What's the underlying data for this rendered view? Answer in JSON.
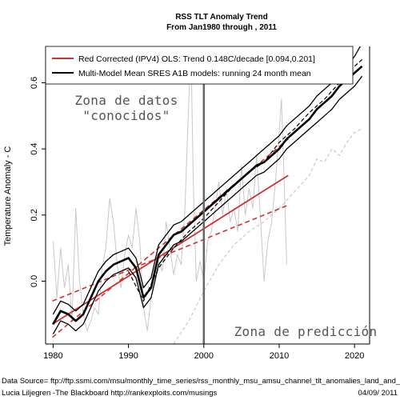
{
  "chart_data": {
    "type": "line",
    "title": "RSS TLT Anomaly Trend",
    "subtitle": "From Jan1980 through , 2011",
    "xlabel": "",
    "ylabel": "Temperature Anomaly - C",
    "xlim": [
      1979,
      2022
    ],
    "ylim": [
      -0.19,
      0.71
    ],
    "x_ticks": [
      1980,
      1990,
      2000,
      2010,
      2020
    ],
    "y_ticks": [
      0.0,
      0.2,
      0.4,
      0.6
    ],
    "grid": false,
    "legend_position": "top",
    "legend": [
      {
        "label": "Red Corrected (IPV4) OLS: Trend 0.148C/decade [0.094,0.201]",
        "color": "#d03030"
      },
      {
        "label": "Multi-Model Mean SRES A1B models: running 24 month mean",
        "color": "#000000"
      }
    ],
    "annotations": {
      "zone_known_line1": "Zona de datos",
      "zone_known_line2": "\"conocidos\"",
      "zone_prediction": "Zona de predicción"
    },
    "vertical_marker_x": 2000,
    "series": [
      {
        "name": "Red Corrected (IPV4) OLS: Trend 0.148C/decade [0.094,0.201]",
        "style": "red-solid",
        "x": [
          1979.9,
          2011.2
        ],
        "y": [
          -0.13,
          0.32
        ]
      },
      {
        "name": "",
        "style": "red-dashed",
        "x": [
          1979.9,
          2011.2
        ],
        "y": [
          -0.06,
          0.23
        ]
      },
      {
        "name": "",
        "style": "red-dashed",
        "x": [
          1979.9,
          2011.2
        ],
        "y": [
          -0.17,
          0.43
        ]
      },
      {
        "name": "Multi-Model Mean SRES A1B models: running 24 month mean",
        "style": "black-thick",
        "x": [
          1980,
          1981,
          1982,
          1983,
          1984,
          1985,
          1986,
          1987,
          1988,
          1989,
          1990,
          1991,
          1992,
          1993,
          1994,
          1995,
          1996,
          1997,
          1998,
          1999,
          2000,
          2001,
          2002,
          2003,
          2004,
          2005,
          2006,
          2007,
          2008,
          2009,
          2010,
          2011,
          2012,
          2013,
          2014,
          2015,
          2016,
          2017,
          2018,
          2019,
          2020,
          2021
        ],
        "y": [
          -0.13,
          -0.09,
          -0.1,
          -0.12,
          -0.1,
          -0.05,
          0.0,
          0.03,
          0.05,
          0.06,
          0.07,
          0.04,
          -0.05,
          -0.02,
          0.08,
          0.11,
          0.14,
          0.15,
          0.17,
          0.19,
          0.21,
          0.23,
          0.25,
          0.27,
          0.29,
          0.31,
          0.33,
          0.35,
          0.36,
          0.38,
          0.4,
          0.43,
          0.45,
          0.47,
          0.49,
          0.52,
          0.54,
          0.56,
          0.59,
          0.61,
          0.63,
          0.65
        ]
      },
      {
        "name": "",
        "style": "black-thin",
        "x": [
          1980,
          1981,
          1982,
          1983,
          1984,
          1985,
          1986,
          1987,
          1988,
          1989,
          1990,
          1991,
          1992,
          1993,
          1994,
          1995,
          1996,
          1997,
          1998,
          1999,
          2000,
          2001,
          2002,
          2003,
          2004,
          2005,
          2006,
          2007,
          2008,
          2009,
          2010,
          2011,
          2012,
          2013,
          2014,
          2015,
          2016,
          2017,
          2018,
          2019,
          2020,
          2021
        ],
        "y": [
          -0.1,
          -0.06,
          -0.07,
          -0.09,
          -0.07,
          -0.02,
          0.03,
          0.06,
          0.08,
          0.09,
          0.1,
          0.07,
          -0.02,
          0.01,
          0.11,
          0.14,
          0.17,
          0.18,
          0.2,
          0.22,
          0.24,
          0.26,
          0.28,
          0.3,
          0.32,
          0.34,
          0.36,
          0.38,
          0.4,
          0.42,
          0.44,
          0.47,
          0.49,
          0.51,
          0.53,
          0.56,
          0.58,
          0.6,
          0.63,
          0.65,
          0.68,
          0.72
        ]
      },
      {
        "name": "",
        "style": "black-thin",
        "x": [
          1980,
          1981,
          1982,
          1983,
          1984,
          1985,
          1986,
          1987,
          1988,
          1989,
          1990,
          1991,
          1992,
          1993,
          1994,
          1995,
          1996,
          1997,
          1998,
          1999,
          2000,
          2001,
          2002,
          2003,
          2004,
          2005,
          2006,
          2007,
          2008,
          2009,
          2010,
          2011,
          2012,
          2013,
          2014,
          2015,
          2016,
          2017,
          2018,
          2019,
          2020,
          2021
        ],
        "y": [
          -0.16,
          -0.12,
          -0.13,
          -0.15,
          -0.13,
          -0.08,
          -0.03,
          0.0,
          0.02,
          0.03,
          0.04,
          0.01,
          -0.08,
          -0.05,
          0.05,
          0.08,
          0.11,
          0.12,
          0.14,
          0.16,
          0.18,
          0.2,
          0.22,
          0.24,
          0.26,
          0.28,
          0.3,
          0.32,
          0.33,
          0.35,
          0.37,
          0.4,
          0.42,
          0.44,
          0.46,
          0.48,
          0.5,
          0.52,
          0.55,
          0.57,
          0.59,
          0.62
        ]
      },
      {
        "name": "",
        "style": "black-dashed",
        "x": [
          1990,
          1992,
          1994,
          1996,
          1998,
          2000,
          2002,
          2004,
          2006,
          2008,
          2010,
          2012,
          2014,
          2016,
          2018,
          2020,
          2021
        ],
        "y": [
          0.03,
          -0.06,
          0.04,
          0.1,
          0.15,
          0.19,
          0.24,
          0.29,
          0.33,
          0.36,
          0.42,
          0.46,
          0.51,
          0.55,
          0.6,
          0.65,
          0.67
        ]
      },
      {
        "name": "",
        "style": "gray-dashed",
        "x": [
          1996,
          1998,
          2000,
          2002,
          2004,
          2006,
          2008,
          2010,
          2012,
          2014,
          2015,
          2016,
          2017,
          2018,
          2019,
          2020,
          2021
        ],
        "y": [
          -0.19,
          -0.12,
          -0.03,
          0.05,
          0.11,
          0.15,
          0.18,
          0.22,
          0.27,
          0.32,
          0.37,
          0.36,
          0.4,
          0.38,
          0.42,
          0.45,
          0.46
        ]
      },
      {
        "name": "",
        "style": "gray-monthly",
        "x": [
          1980,
          1980.5,
          1981,
          1981.5,
          1982,
          1982.5,
          1983,
          1983.5,
          1984,
          1984.5,
          1985,
          1985.5,
          1986,
          1986.5,
          1987,
          1987.5,
          1988,
          1988.5,
          1989,
          1989.5,
          1990,
          1990.5,
          1991,
          1991.5,
          1992,
          1992.5,
          1993,
          1993.5,
          1994,
          1994.5,
          1995,
          1995.5,
          1996,
          1996.5,
          1997,
          1997.5,
          1998,
          1998.3,
          1998.6,
          1999,
          1999.5,
          2000,
          2000.5,
          2001,
          2001.5,
          2002,
          2002.5,
          2003,
          2003.5,
          2004,
          2004.5,
          2005,
          2005.5,
          2006,
          2006.5,
          2007,
          2007.5,
          2008,
          2008.5,
          2009,
          2009.5,
          2010,
          2010.3,
          2010.6,
          2011
        ],
        "y": [
          0.12,
          -0.05,
          0.1,
          -0.02,
          0.05,
          -0.12,
          0.22,
          0.0,
          -0.1,
          -0.15,
          -0.12,
          -0.08,
          -0.1,
          0.04,
          0.1,
          0.25,
          0.18,
          0.05,
          -0.02,
          0.08,
          0.14,
          0.1,
          0.22,
          0.12,
          -0.08,
          -0.15,
          -0.05,
          0.0,
          0.06,
          0.03,
          0.18,
          0.1,
          0.02,
          0.08,
          0.05,
          0.22,
          0.55,
          0.7,
          0.3,
          0.0,
          0.06,
          0.0,
          0.12,
          0.15,
          0.22,
          0.3,
          0.2,
          0.28,
          0.18,
          0.22,
          0.15,
          0.35,
          0.2,
          0.28,
          0.22,
          0.38,
          0.2,
          0.0,
          0.12,
          0.18,
          0.3,
          0.45,
          0.55,
          0.35,
          0.05
        ]
      }
    ]
  },
  "footer": {
    "source": "Data Source= ftp://ftp.ssmi.com/msu/monthly_time_series/rss_monthly_msu_amsu_channel_tlt_anomalies_land_and_",
    "author": "Lucia Liljegren -The Blackboard  http://rankexploits.com/musings",
    "date": "04/09/ 2011"
  },
  "colors": {
    "red": "#d03030",
    "black": "#000000",
    "gray_monthly": "#c8c8c8",
    "gray_dashed": "#c0c0c0",
    "marker": "#666666"
  }
}
